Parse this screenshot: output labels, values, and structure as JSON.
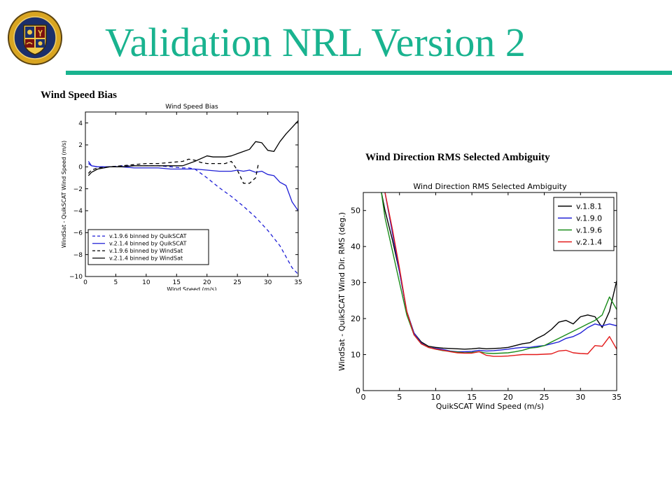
{
  "slide": {
    "title": "Validation NRL Version 2",
    "accent_color": "#19b38f",
    "logo_icon": "nrl-seal-icon",
    "caption_left": "Wind Speed Bias",
    "caption_right": "Wind Direction RMS Selected Ambiguity"
  },
  "chart_data": [
    {
      "type": "line",
      "title": "Wind Speed Bias",
      "xlabel": "Wind Speed (m/s)",
      "ylabel": "WindSat - QuikSCAT Wind Speed (m/s)",
      "xlim": [
        0,
        35
      ],
      "ylim": [
        -10,
        5
      ],
      "xticks": [
        0,
        5,
        10,
        15,
        20,
        25,
        30,
        35
      ],
      "yticks": [
        -10,
        -8,
        -6,
        -4,
        -2,
        0,
        2,
        4
      ],
      "grid": false,
      "legend_position": "bottom-left",
      "series": [
        {
          "name": "v.1.9.6 binned by QuikSCAT",
          "color": "#1f1fd6",
          "dash": "dashed",
          "x": [
            0.5,
            1,
            2,
            4,
            6,
            8,
            10,
            12,
            14,
            16,
            17,
            18,
            19,
            20,
            22,
            24,
            26,
            28,
            30,
            32,
            33,
            34,
            35
          ],
          "y": [
            0.3,
            0.1,
            0.0,
            0.0,
            0.1,
            0.1,
            0.1,
            0.1,
            0.0,
            -0.1,
            -0.1,
            -0.2,
            -0.6,
            -1.0,
            -1.9,
            -2.7,
            -3.6,
            -4.6,
            -5.8,
            -7.2,
            -8.2,
            -9.2,
            -9.8
          ]
        },
        {
          "name": "v.2.1.4 binned by QuikSCAT",
          "color": "#1f1fd6",
          "dash": "solid",
          "x": [
            0.5,
            1,
            2,
            4,
            6,
            8,
            10,
            12,
            14,
            16,
            18,
            20,
            22,
            24,
            25,
            26,
            27,
            28,
            29,
            30,
            31,
            32,
            33,
            34,
            35
          ],
          "y": [
            0.5,
            0.1,
            0.0,
            0.0,
            0.0,
            -0.1,
            -0.1,
            -0.1,
            -0.2,
            -0.2,
            -0.2,
            -0.3,
            -0.4,
            -0.4,
            -0.3,
            -0.4,
            -0.3,
            -0.5,
            -0.4,
            -0.7,
            -0.8,
            -1.4,
            -1.7,
            -3.2,
            -4.0
          ]
        },
        {
          "name": "v.1.9.6 binned by WindSat",
          "color": "#000000",
          "dash": "dashed",
          "x": [
            0.5,
            1,
            2,
            4,
            6,
            8,
            10,
            12,
            14,
            16,
            17,
            18,
            19,
            20,
            21,
            22,
            23,
            24,
            25,
            26,
            27,
            28,
            28.5
          ],
          "y": [
            -0.6,
            -0.3,
            -0.1,
            0.0,
            0.1,
            0.2,
            0.3,
            0.3,
            0.4,
            0.5,
            0.7,
            0.6,
            0.4,
            0.3,
            0.3,
            0.3,
            0.3,
            0.5,
            -0.3,
            -1.5,
            -1.5,
            -1.0,
            0.4
          ]
        },
        {
          "name": "v.2.1.4 binned by WindSat",
          "color": "#000000",
          "dash": "solid",
          "x": [
            0.5,
            1,
            2,
            4,
            6,
            8,
            10,
            12,
            14,
            16,
            18,
            20,
            21,
            22,
            23,
            24,
            25,
            26,
            27,
            28,
            29,
            30,
            31,
            32,
            33,
            34,
            35
          ],
          "y": [
            -0.8,
            -0.5,
            -0.2,
            0.0,
            0.0,
            0.1,
            0.1,
            0.1,
            0.1,
            0.1,
            0.5,
            1.0,
            0.9,
            0.9,
            0.9,
            1.0,
            1.2,
            1.4,
            1.6,
            2.3,
            2.2,
            1.5,
            1.4,
            2.3,
            3.0,
            3.6,
            4.2
          ]
        }
      ]
    },
    {
      "type": "line",
      "title": "Wind Direction RMS Selected Ambiguity",
      "xlabel": "QuikSCAT Wind Speed (m/s)",
      "ylabel": "WindSat - QuikSCAT Wind Dir. RMS (deg.)",
      "xlim": [
        0,
        35
      ],
      "ylim": [
        0,
        55
      ],
      "xticks": [
        0,
        5,
        10,
        15,
        20,
        25,
        30,
        35
      ],
      "yticks": [
        0,
        10,
        20,
        30,
        40,
        50
      ],
      "grid": false,
      "legend_position": "top-right",
      "series": [
        {
          "name": "v.1.8.1",
          "color": "#000000",
          "x": [
            2.5,
            3,
            4,
            5,
            6,
            7,
            8,
            9,
            10,
            11,
            12,
            13,
            14,
            15,
            16,
            17,
            18,
            19,
            20,
            21,
            22,
            23,
            24,
            25,
            26,
            27,
            28,
            29,
            30,
            31,
            32,
            33,
            34,
            35
          ],
          "y": [
            55,
            50,
            42,
            33,
            22,
            16,
            13.5,
            12.3,
            12.0,
            11.8,
            11.7,
            11.6,
            11.5,
            11.6,
            11.8,
            11.6,
            11.7,
            11.8,
            12.0,
            12.5,
            13.0,
            13.3,
            14.5,
            15.5,
            17.0,
            19.0,
            19.5,
            18.5,
            20.5,
            21.0,
            20.5,
            17.5,
            22.0,
            30.5
          ]
        },
        {
          "name": "v.1.9.0",
          "color": "#1f1fd6",
          "x": [
            3,
            4,
            5,
            6,
            7,
            8,
            9,
            10,
            11,
            12,
            13,
            14,
            15,
            16,
            17,
            18,
            19,
            20,
            21,
            22,
            23,
            24,
            25,
            26,
            27,
            28,
            29,
            30,
            31,
            32,
            33,
            34,
            35
          ],
          "y": [
            55,
            44,
            33,
            22,
            16,
            13.2,
            12.0,
            11.7,
            11.4,
            11.0,
            10.8,
            10.8,
            10.9,
            11.2,
            11.0,
            11.1,
            11.3,
            11.5,
            11.8,
            12.0,
            12.0,
            12.3,
            12.5,
            13.0,
            13.5,
            14.5,
            15.0,
            16.0,
            17.5,
            18.5,
            18.0,
            18.5,
            18.0
          ]
        },
        {
          "name": "v.1.9.6",
          "color": "#1a8c1a",
          "x": [
            2.5,
            3,
            4,
            5,
            6,
            7,
            8,
            9,
            10,
            11,
            12,
            13,
            14,
            15,
            16,
            17,
            18,
            19,
            20,
            21,
            22,
            23,
            24,
            25,
            26,
            27,
            28,
            29,
            30,
            31,
            32,
            33,
            34,
            35
          ],
          "y": [
            55,
            48,
            39,
            30,
            21,
            15.5,
            13.0,
            12.0,
            11.5,
            11.1,
            10.9,
            10.7,
            10.5,
            10.6,
            10.8,
            10.4,
            10.3,
            10.4,
            10.5,
            10.8,
            11.2,
            11.8,
            12.0,
            12.5,
            13.5,
            14.5,
            15.5,
            16.5,
            17.5,
            18.5,
            19.5,
            21.0,
            26.0,
            22.5
          ]
        },
        {
          "name": "v.2.1.4",
          "color": "#e31a1a",
          "x": [
            3,
            4,
            5,
            6,
            7,
            8,
            9,
            10,
            11,
            12,
            13,
            14,
            15,
            16,
            17,
            18,
            19,
            20,
            21,
            22,
            23,
            24,
            25,
            26,
            27,
            28,
            29,
            30,
            31,
            32,
            33,
            34,
            35
          ],
          "y": [
            55,
            45,
            34,
            22,
            15.5,
            13.0,
            12.0,
            11.5,
            11.2,
            10.8,
            10.5,
            10.4,
            10.4,
            10.8,
            9.8,
            9.5,
            9.5,
            9.6,
            9.8,
            10.0,
            10.0,
            10.0,
            10.1,
            10.2,
            11.0,
            11.2,
            10.5,
            10.3,
            10.2,
            12.5,
            12.3,
            15.0,
            11.5
          ]
        }
      ]
    }
  ]
}
